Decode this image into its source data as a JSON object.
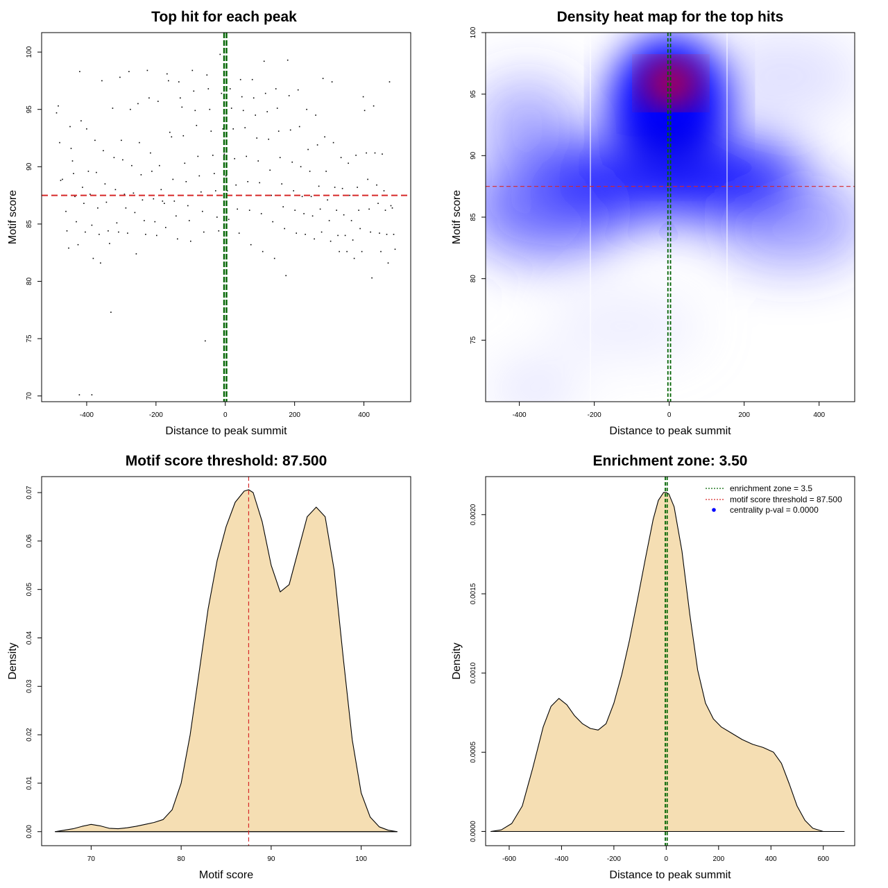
{
  "colors": {
    "points": "#000000",
    "threshold_line": "#d62728",
    "zone_line": "#006400",
    "fill": "#f5deb3",
    "heat_low": "#ffffff",
    "heat_mid": "#0000ff",
    "heat_high": "#ff0000"
  },
  "chart_data": [
    {
      "type": "scatter",
      "title": "Top hit for each peak",
      "xlabel": "Distance to peak summit",
      "ylabel": "Motif score",
      "xlim": [
        -530,
        535
      ],
      "ylim": [
        69.5,
        101.7
      ],
      "xticks": [
        -400,
        -200,
        0,
        200,
        400
      ],
      "yticks": [
        70,
        75,
        80,
        85,
        90,
        95,
        100
      ],
      "hline": 87.5,
      "vlines": [
        -3.5,
        3.5
      ],
      "points": [
        [
          -487,
          94.7
        ],
        [
          -482,
          95.3
        ],
        [
          -478,
          92.1
        ],
        [
          -475,
          88.8
        ],
        [
          -470,
          88.9
        ],
        [
          -465,
          87.5
        ],
        [
          -460,
          86.1
        ],
        [
          -457,
          84.4
        ],
        [
          -452,
          82.9
        ],
        [
          -448,
          93.5
        ],
        [
          -445,
          91.6
        ],
        [
          -441,
          90.5
        ],
        [
          -438,
          89.4
        ],
        [
          -434,
          87.4
        ],
        [
          -430,
          85.2
        ],
        [
          -425,
          83.2
        ],
        [
          -420,
          98.3
        ],
        [
          -416,
          94.0
        ],
        [
          -412,
          88.2
        ],
        [
          -408,
          86.8
        ],
        [
          -404,
          84.3
        ],
        [
          -400,
          93.3
        ],
        [
          -395,
          89.6
        ],
        [
          -390,
          87.6
        ],
        [
          -385,
          84.9
        ],
        [
          -381,
          82.0
        ],
        [
          -376,
          92.3
        ],
        [
          -372,
          89.5
        ],
        [
          -368,
          86.4
        ],
        [
          -364,
          84.1
        ],
        [
          -360,
          81.6
        ],
        [
          -356,
          97.5
        ],
        [
          -352,
          91.4
        ],
        [
          -347,
          88.5
        ],
        [
          -343,
          86.9
        ],
        [
          -338,
          84.4
        ],
        [
          -334,
          83.3
        ],
        [
          -330,
          77.3
        ],
        [
          -325,
          95.1
        ],
        [
          -321,
          90.8
        ],
        [
          -317,
          88.0
        ],
        [
          -313,
          85.1
        ],
        [
          -308,
          84.3
        ],
        [
          -304,
          97.8
        ],
        [
          -300,
          92.3
        ],
        [
          -296,
          90.6
        ],
        [
          -291,
          87.6
        ],
        [
          -287,
          86.4
        ],
        [
          -282,
          84.2
        ],
        [
          -278,
          98.3
        ],
        [
          -274,
          95.0
        ],
        [
          -270,
          90.1
        ],
        [
          -265,
          87.7
        ],
        [
          -261,
          86.0
        ],
        [
          -257,
          82.4
        ],
        [
          -252,
          95.5
        ],
        [
          -248,
          92.1
        ],
        [
          -243,
          89.3
        ],
        [
          -239,
          87.1
        ],
        [
          -234,
          85.3
        ],
        [
          -230,
          84.1
        ],
        [
          -225,
          98.4
        ],
        [
          -220,
          96.0
        ],
        [
          -216,
          91.2
        ],
        [
          -212,
          89.6
        ],
        [
          -207,
          87.2
        ],
        [
          -203,
          85.2
        ],
        [
          -198,
          84.0
        ],
        [
          -194,
          95.7
        ],
        [
          -190,
          90.1
        ],
        [
          -185,
          88.0
        ],
        [
          -181,
          87.0
        ],
        [
          -176,
          86.8
        ],
        [
          -172,
          84.7
        ],
        [
          -168,
          98.1
        ],
        [
          -164,
          97.5
        ],
        [
          -160,
          93.0
        ],
        [
          -155,
          92.6
        ],
        [
          -151,
          88.9
        ],
        [
          -147,
          87.0
        ],
        [
          -142,
          85.7
        ],
        [
          -138,
          83.7
        ],
        [
          -134,
          97.4
        ],
        [
          -130,
          96.0
        ],
        [
          -125,
          95.2
        ],
        [
          -121,
          92.7
        ],
        [
          -117,
          90.3
        ],
        [
          -113,
          88.7
        ],
        [
          -108,
          86.6
        ],
        [
          -104,
          85.3
        ],
        [
          -100,
          83.5
        ],
        [
          -95,
          98.4
        ],
        [
          -91,
          96.6
        ],
        [
          -87,
          94.9
        ],
        [
          -83,
          93.6
        ],
        [
          -79,
          90.9
        ],
        [
          -75,
          89.2
        ],
        [
          -70,
          87.8
        ],
        [
          -66,
          86.1
        ],
        [
          -62,
          84.3
        ],
        [
          -58,
          74.8
        ],
        [
          -53,
          98.0
        ],
        [
          -49,
          96.8
        ],
        [
          -45,
          95.0
        ],
        [
          -41,
          93.1
        ],
        [
          -36,
          91.0
        ],
        [
          -32,
          89.4
        ],
        [
          -28,
          87.9
        ],
        [
          -24,
          85.6
        ],
        [
          -19,
          84.4
        ],
        [
          -15,
          99.8
        ],
        [
          -11,
          96.4
        ],
        [
          -7,
          93.3
        ],
        [
          -3,
          91.1
        ],
        [
          2,
          89.2
        ],
        [
          6,
          87.9
        ],
        [
          10,
          85.4
        ],
        [
          14,
          96.8
        ],
        [
          18,
          95.1
        ],
        [
          23,
          93.3
        ],
        [
          27,
          90.7
        ],
        [
          31,
          88.4
        ],
        [
          35,
          86.3
        ],
        [
          40,
          84.2
        ],
        [
          44,
          97.6
        ],
        [
          48,
          96.1
        ],
        [
          52,
          94.9
        ],
        [
          57,
          93.4
        ],
        [
          61,
          90.9
        ],
        [
          65,
          88.7
        ],
        [
          70,
          86.2
        ],
        [
          74,
          83.2
        ],
        [
          78,
          97.6
        ],
        [
          82,
          96.0
        ],
        [
          87,
          94.5
        ],
        [
          91,
          92.5
        ],
        [
          95,
          90.5
        ],
        [
          99,
          88.6
        ],
        [
          104,
          85.9
        ],
        [
          108,
          82.6
        ],
        [
          112,
          99.2
        ],
        [
          116,
          96.4
        ],
        [
          121,
          94.8
        ],
        [
          125,
          92.4
        ],
        [
          129,
          89.7
        ],
        [
          133,
          87.5
        ],
        [
          137,
          85.2
        ],
        [
          142,
          82.0
        ],
        [
          146,
          96.8
        ],
        [
          150,
          95.1
        ],
        [
          154,
          93.1
        ],
        [
          158,
          90.8
        ],
        [
          163,
          88.5
        ],
        [
          167,
          86.5
        ],
        [
          171,
          84.6
        ],
        [
          175,
          80.5
        ],
        [
          180,
          99.3
        ],
        [
          184,
          96.2
        ],
        [
          188,
          93.2
        ],
        [
          193,
          90.4
        ],
        [
          197,
          87.9
        ],
        [
          201,
          86.2
        ],
        [
          205,
          84.2
        ],
        [
          210,
          96.7
        ],
        [
          214,
          93.5
        ],
        [
          218,
          90.0
        ],
        [
          222,
          87.4
        ],
        [
          227,
          85.9
        ],
        [
          231,
          84.1
        ],
        [
          235,
          95.0
        ],
        [
          239,
          91.5
        ],
        [
          244,
          89.6
        ],
        [
          248,
          87.4
        ],
        [
          252,
          85.7
        ],
        [
          257,
          83.7
        ],
        [
          261,
          94.5
        ],
        [
          266,
          91.9
        ],
        [
          270,
          88.3
        ],
        [
          274,
          86.3
        ],
        [
          278,
          84.3
        ],
        [
          282,
          97.7
        ],
        [
          287,
          92.6
        ],
        [
          291,
          89.6
        ],
        [
          295,
          87.1
        ],
        [
          300,
          85.3
        ],
        [
          304,
          83.5
        ],
        [
          308,
          97.4
        ],
        [
          312,
          92.1
        ],
        [
          316,
          88.2
        ],
        [
          321,
          86.2
        ],
        [
          325,
          84.0
        ],
        [
          329,
          82.6
        ],
        [
          334,
          90.8
        ],
        [
          338,
          88.1
        ],
        [
          342,
          85.8
        ],
        [
          346,
          84.0
        ],
        [
          351,
          82.6
        ],
        [
          355,
          90.3
        ],
        [
          359,
          87.5
        ],
        [
          364,
          85.3
        ],
        [
          368,
          83.6
        ],
        [
          372,
          82.0
        ],
        [
          377,
          91.0
        ],
        [
          381,
          88.2
        ],
        [
          385,
          86.2
        ],
        [
          389,
          84.6
        ],
        [
          394,
          82.6
        ],
        [
          398,
          96.1
        ],
        [
          402,
          94.9
        ],
        [
          407,
          91.2
        ],
        [
          411,
          88.9
        ],
        [
          415,
          86.3
        ],
        [
          419,
          84.3
        ],
        [
          423,
          80.3
        ],
        [
          428,
          95.3
        ],
        [
          432,
          91.2
        ],
        [
          437,
          88.4
        ],
        [
          441,
          86.8
        ],
        [
          445,
          84.2
        ],
        [
          449,
          82.6
        ],
        [
          453,
          91.1
        ],
        [
          458,
          87.9
        ],
        [
          462,
          86.2
        ],
        [
          466,
          84.1
        ],
        [
          470,
          81.6
        ],
        [
          474,
          97.4
        ],
        [
          478,
          86.6
        ],
        [
          482,
          86.4
        ],
        [
          486,
          84.1
        ],
        [
          490,
          82.8
        ],
        [
          -421,
          70.1
        ],
        [
          -385,
          70.1
        ]
      ]
    },
    {
      "type": "heatmap",
      "title": "Density heat map for the top hits",
      "xlabel": "Distance to peak summit",
      "ylabel": "Motif score",
      "xlim": [
        -490,
        495
      ],
      "ylim": [
        70.0,
        100.0
      ],
      "xticks": [
        -400,
        -200,
        0,
        200,
        400
      ],
      "yticks": [
        75,
        80,
        85,
        90,
        95,
        100
      ],
      "hline": 87.5,
      "vlines": [
        -3.5,
        3.5
      ]
    },
    {
      "type": "area",
      "title": "Motif score threshold: 87.500",
      "xlabel": "Motif score",
      "ylabel": "Density",
      "xlim": [
        64.5,
        105.5
      ],
      "ylim": [
        -0.0029,
        0.0733
      ],
      "xticks": [
        70,
        80,
        90,
        100
      ],
      "yticks": [
        0.0,
        0.01,
        0.02,
        0.03,
        0.04,
        0.05,
        0.06,
        0.07
      ],
      "ytick_labels": [
        "0.00",
        "0.01",
        "0.02",
        "0.03",
        "0.04",
        "0.05",
        "0.06",
        "0.07"
      ],
      "vline": 87.5,
      "x": [
        66,
        67,
        68,
        69,
        70,
        71,
        72,
        73,
        74,
        75,
        76,
        77,
        78,
        79,
        80,
        81,
        82,
        83,
        84,
        85,
        86,
        87,
        87.5,
        88,
        89,
        90,
        91,
        92,
        93,
        94,
        95,
        96,
        97,
        98,
        99,
        100,
        101,
        102,
        103,
        104
      ],
      "y": [
        0.0,
        0.0003,
        0.0006,
        0.0011,
        0.0015,
        0.0012,
        0.0007,
        0.0006,
        0.0008,
        0.0011,
        0.0015,
        0.0019,
        0.0025,
        0.0045,
        0.01,
        0.02,
        0.033,
        0.046,
        0.056,
        0.063,
        0.068,
        0.0703,
        0.0706,
        0.07,
        0.064,
        0.055,
        0.0495,
        0.051,
        0.058,
        0.065,
        0.067,
        0.065,
        0.054,
        0.036,
        0.019,
        0.008,
        0.003,
        0.001,
        0.0003,
        0.0
      ]
    },
    {
      "type": "area",
      "title": "Enrichment zone: 3.50",
      "xlabel": "Distance to peak summit",
      "ylabel": "Density",
      "xlim": [
        -690,
        720
      ],
      "ylim": [
        -9e-05,
        0.00224
      ],
      "xticks": [
        -600,
        -400,
        -200,
        0,
        200,
        400,
        600
      ],
      "yticks": [
        0.0,
        0.0005,
        0.001,
        0.0015,
        0.002
      ],
      "ytick_labels": [
        "0.0000",
        "0.0005",
        "0.0010",
        "0.0015",
        "0.0020"
      ],
      "vlines": [
        -3.5,
        3.5
      ],
      "x": [
        -670,
        -630,
        -590,
        -550,
        -510,
        -470,
        -440,
        -410,
        -380,
        -350,
        -320,
        -290,
        -260,
        -230,
        -200,
        -170,
        -140,
        -110,
        -80,
        -50,
        -30,
        -10,
        0,
        10,
        30,
        60,
        90,
        120,
        150,
        180,
        210,
        250,
        290,
        330,
        370,
        410,
        440,
        470,
        500,
        530,
        560,
        600,
        640,
        680
      ],
      "y": [
        0.0,
        1e-05,
        5e-05,
        0.00016,
        0.0004,
        0.00066,
        0.00079,
        0.00084,
        0.0008,
        0.00073,
        0.00068,
        0.00065,
        0.00064,
        0.00068,
        0.00081,
        0.00099,
        0.00121,
        0.00146,
        0.00172,
        0.00197,
        0.00209,
        0.00214,
        0.00214,
        0.00213,
        0.00205,
        0.00177,
        0.00137,
        0.00102,
        0.00081,
        0.00071,
        0.00066,
        0.00062,
        0.00058,
        0.00055,
        0.00053,
        0.0005,
        0.00043,
        0.0003,
        0.00016,
        7e-05,
        2e-05,
        0.0,
        0.0,
        0.0
      ]
    }
  ],
  "legend": {
    "zone_label": "enrichment zone = 3.5",
    "threshold_label": "motif score threshold = 87.500",
    "pval_label": "centrality p-val = 0.0000"
  }
}
